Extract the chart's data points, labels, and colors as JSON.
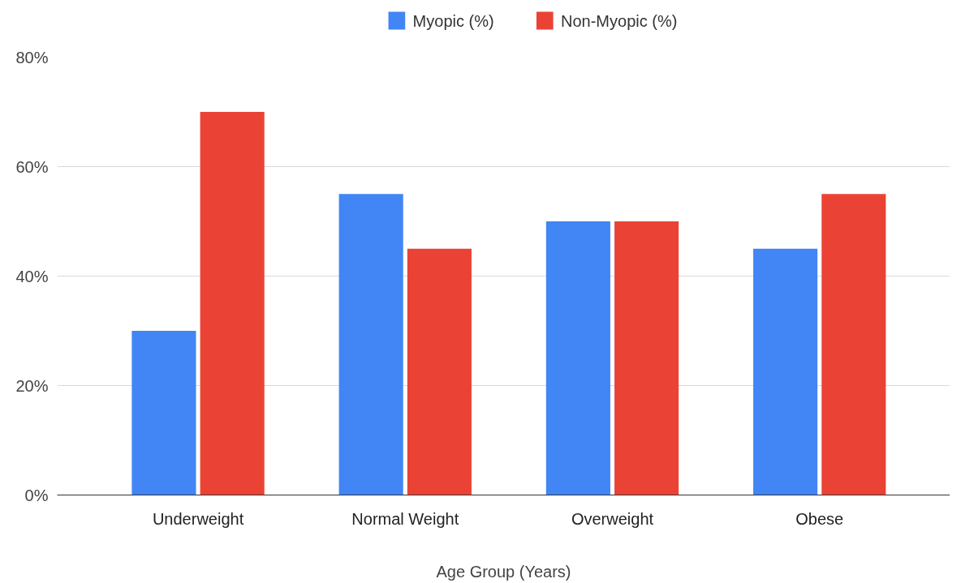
{
  "chart_data": {
    "type": "bar",
    "xlabel": "Age Group (Years)",
    "categories": [
      "Underweight",
      "Normal Weight",
      "Overweight",
      "Obese"
    ],
    "series": [
      {
        "name": "Myopic (%)",
        "color": "#4285f4",
        "values": [
          30,
          55,
          50,
          45
        ]
      },
      {
        "name": "Non-Myopic (%)",
        "color": "#ea4335",
        "values": [
          70,
          45,
          50,
          55
        ]
      }
    ],
    "ylim": [
      0,
      80
    ],
    "yticks": [
      {
        "value": 0,
        "label": "0%"
      },
      {
        "value": 20,
        "label": "20%"
      },
      {
        "value": 40,
        "label": "40%"
      },
      {
        "value": 60,
        "label": "60%"
      },
      {
        "value": 80,
        "label": "80%"
      }
    ],
    "grid": "y",
    "legend": "top"
  }
}
